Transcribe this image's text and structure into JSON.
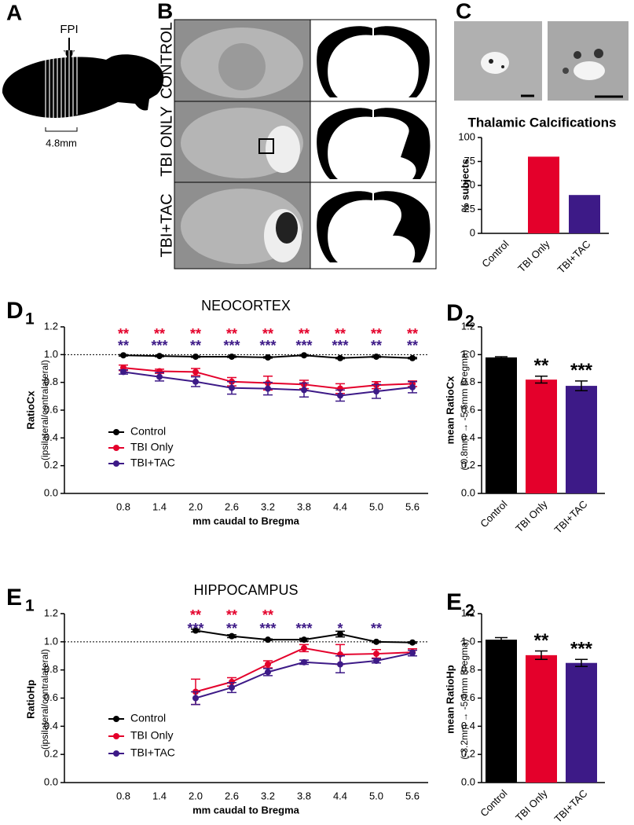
{
  "figure": {
    "panel_a": {
      "label": "A",
      "marker": "FPI",
      "scale": "4.8mm"
    },
    "panel_b": {
      "label": "B",
      "rows": [
        "CONTROL",
        "TBI ONLY",
        "TBI+TAC"
      ]
    },
    "panel_c": {
      "label": "C"
    }
  },
  "chart_data": [
    {
      "type": "bar",
      "title": "Thalamic Calcifications",
      "ylabel": "% subjects",
      "categories": [
        "Control",
        "TBI Only",
        "TBI+TAC"
      ],
      "values": [
        0,
        80,
        40
      ],
      "colors": [
        "#000000",
        "#e4002b",
        "#3d1a87"
      ],
      "ylim": [
        0,
        100
      ],
      "yticks": [
        0,
        25,
        50,
        75,
        100
      ]
    },
    {
      "type": "line",
      "panel_label": "D",
      "panel_subscript": "1",
      "title": "NEOCORTEX",
      "ylabel": "RatioCx",
      "ylabel_sub": "(ipsilateral/contralateral)",
      "xlabel": "mm caudal to Bregma",
      "categories": [
        "0.8",
        "1.4",
        "2.0",
        "2.6",
        "3.2",
        "3.8",
        "4.4",
        "5.0",
        "5.6"
      ],
      "ylim": [
        0,
        1.2
      ],
      "yticks": [
        {
          "value": 0,
          "label": "0.0"
        },
        0.2,
        0.4,
        0.6,
        0.8,
        {
          "value": 1,
          "label": "1.0"
        },
        1.2
      ],
      "reference_line": 1,
      "legend": "bottom-left",
      "series": [
        {
          "name": "Control",
          "color": "#000000",
          "values": [
            0.995,
            0.99,
            0.985,
            0.985,
            0.98,
            0.995,
            0.975,
            0.985,
            0.975
          ],
          "errors": [
            0.005,
            0.005,
            0.005,
            0.005,
            0.005,
            0.005,
            0.005,
            0.005,
            0.005
          ]
        },
        {
          "name": "TBI Only",
          "color": "#e4002b",
          "values": [
            0.905,
            0.88,
            0.875,
            0.805,
            0.795,
            0.785,
            0.755,
            0.78,
            0.79
          ],
          "errors": [
            0.02,
            0.015,
            0.025,
            0.03,
            0.05,
            0.03,
            0.035,
            0.025,
            0.02
          ],
          "annotations": [
            "**",
            "**",
            "**",
            "**",
            "**",
            "**",
            "**",
            "**",
            "**"
          ]
        },
        {
          "name": "TBI+TAC",
          "color": "#3d1a87",
          "values": [
            0.875,
            0.84,
            0.805,
            0.76,
            0.755,
            0.745,
            0.705,
            0.735,
            0.765
          ],
          "errors": [
            0.015,
            0.03,
            0.035,
            0.045,
            0.045,
            0.05,
            0.04,
            0.05,
            0.04
          ],
          "annotations": [
            "**",
            "***",
            "**",
            "***",
            "***",
            "***",
            "***",
            "**",
            "**"
          ]
        }
      ]
    },
    {
      "type": "bar",
      "panel_label": "D",
      "panel_subscript": "2",
      "ylabel": "mean RatioCx",
      "ylabel_sub": "(-0.8mm → -5.6mm Bregma)",
      "categories": [
        "Control",
        "TBI Only",
        "TBI+TAC"
      ],
      "values": [
        0.98,
        0.82,
        0.775
      ],
      "errors": [
        0.005,
        0.025,
        0.035
      ],
      "annotations": [
        null,
        "**",
        "***"
      ],
      "colors": [
        "#000000",
        "#e4002b",
        "#3d1a87"
      ],
      "ylim": [
        0,
        1.2
      ],
      "yticks": [
        {
          "value": 0,
          "label": "0.0"
        },
        0.2,
        0.4,
        0.6,
        0.8,
        {
          "value": 1,
          "label": "1.0"
        },
        1.2
      ]
    },
    {
      "type": "line",
      "panel_label": "E",
      "panel_subscript": "1",
      "title": "HIPPOCAMPUS",
      "ylabel": "RatioHp",
      "ylabel_sub": "(ipsilateral/contralateral)",
      "xlabel": "mm caudal to Bregma",
      "categories": [
        "0.8",
        "1.4",
        "2.0",
        "2.6",
        "3.2",
        "3.8",
        "4.4",
        "5.0",
        "5.6"
      ],
      "ylim": [
        0,
        1.2
      ],
      "yticks": [
        {
          "value": 0,
          "label": "0.0"
        },
        0.2,
        0.4,
        0.6,
        0.8,
        {
          "value": 1,
          "label": "1.0"
        },
        1.2
      ],
      "reference_line": 1,
      "legend": "bottom-left",
      "series": [
        {
          "name": "Control",
          "color": "#000000",
          "values": [
            null,
            null,
            1.08,
            1.04,
            1.015,
            1.015,
            1.055,
            1.0,
            0.995
          ],
          "errors": [
            null,
            null,
            0.01,
            0.01,
            0.005,
            0.01,
            0.02,
            0.005,
            0.005
          ]
        },
        {
          "name": "TBI Only",
          "color": "#e4002b",
          "values": [
            null,
            null,
            0.645,
            0.715,
            0.84,
            0.955,
            0.91,
            0.915,
            0.925
          ],
          "errors": [
            null,
            null,
            0.09,
            0.03,
            0.025,
            0.025,
            0.07,
            0.03,
            0.025
          ],
          "annotations": [
            null,
            null,
            "**",
            "**",
            "**",
            null,
            null,
            null,
            null
          ]
        },
        {
          "name": "TBI+TAC",
          "color": "#3d1a87",
          "values": [
            null,
            null,
            0.6,
            0.675,
            0.785,
            0.855,
            0.84,
            0.865,
            0.92
          ],
          "errors": [
            null,
            null,
            0.045,
            0.035,
            0.025,
            0.015,
            0.06,
            0.015,
            0.02
          ],
          "annotations": [
            null,
            null,
            "***",
            "**",
            "***",
            "***",
            "*",
            "**",
            null
          ]
        }
      ]
    },
    {
      "type": "bar",
      "panel_label": "E",
      "panel_subscript": "2",
      "ylabel": "mean RatioHp",
      "ylabel_sub": "(-3.2mm → -5.6mm Bregma)",
      "categories": [
        "Control",
        "TBI Only",
        "TBI+TAC"
      ],
      "values": [
        1.015,
        0.905,
        0.85
      ],
      "errors": [
        0.015,
        0.03,
        0.025
      ],
      "annotations": [
        null,
        "**",
        "***"
      ],
      "colors": [
        "#000000",
        "#e4002b",
        "#3d1a87"
      ],
      "ylim": [
        0,
        1.2
      ],
      "yticks": [
        {
          "value": 0,
          "label": "0.0"
        },
        0.2,
        0.4,
        0.6,
        0.8,
        {
          "value": 1,
          "label": "1.0"
        },
        1.2
      ]
    }
  ]
}
